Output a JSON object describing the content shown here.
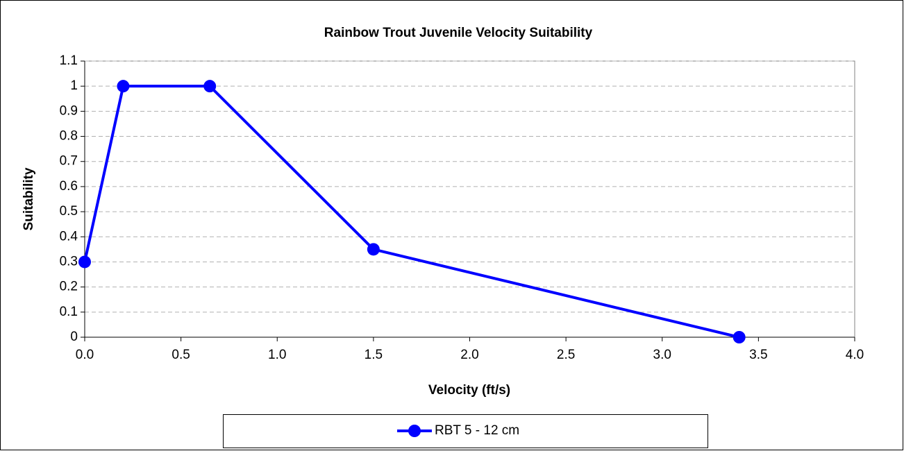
{
  "chart_data": {
    "type": "line",
    "title": "Rainbow Trout Juvenile Velocity Suitability",
    "x_label": "Velocity (ft/s)",
    "y_label": "Suitability",
    "x": [
      0,
      0.2,
      0.65,
      1.5,
      3.4
    ],
    "series": [
      {
        "name": "RBT 5 - 12 cm",
        "color": "#0000ff",
        "values": [
          0.3,
          1,
          1,
          0.35,
          0
        ]
      }
    ],
    "xlim": [
      0,
      4
    ],
    "xticks": [
      {
        "value": 0,
        "label": "0.0"
      },
      {
        "value": 0.5,
        "label": "0.5"
      },
      {
        "value": 1,
        "label": "1.0"
      },
      1.5,
      {
        "value": 2,
        "label": "2.0"
      },
      2.5,
      {
        "value": 3,
        "label": "3.0"
      },
      3.5,
      {
        "value": 4,
        "label": "4.0"
      }
    ],
    "ylim": [
      0,
      1.1
    ],
    "yticks": [
      0,
      0.1,
      0.2,
      0.3,
      0.4,
      0.5,
      0.6,
      0.7,
      0.8,
      0.9,
      1,
      1.1
    ],
    "grid": true,
    "legend": "bottom"
  }
}
